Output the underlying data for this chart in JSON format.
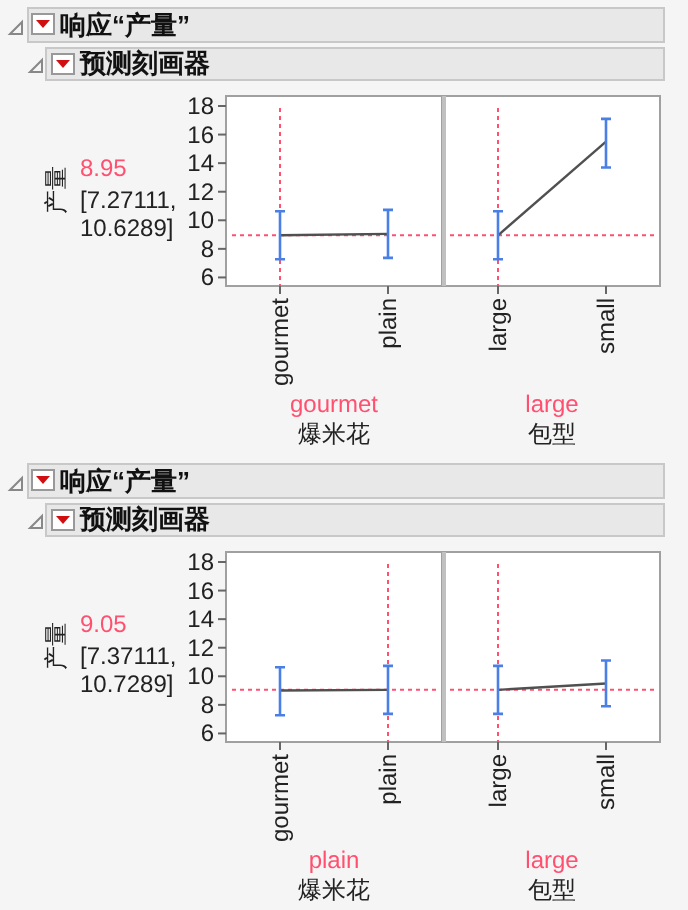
{
  "chart_data": [
    {
      "type": "line",
      "title": "响应“产量”",
      "subtitle": "预测刻画器",
      "ylabel": "产量",
      "xlabel": "爆米花",
      "categories": [
        "gourmet",
        "plain"
      ],
      "series": [
        {
          "color": "#505050",
          "values": [
            8.95,
            9.05
          ],
          "errors": [
            [
              7.27111,
              10.6289
            ],
            [
              7.37,
              10.73
            ]
          ]
        }
      ],
      "ylim": [
        5.4,
        18.7
      ],
      "yticks": [
        6,
        8,
        10,
        12,
        14,
        16,
        18
      ],
      "annotations": [
        "[7.27111, 10.6289]"
      ],
      "ref_lines": [
        {
          "axis": "y",
          "value": 8.95,
          "label": "8.95",
          "color": "#ff5070",
          "line_style": "dotted"
        },
        {
          "axis": "x",
          "value": "gourmet",
          "label": "gourmet",
          "color": "#ff5070",
          "line_style": "dotted"
        }
      ],
      "grid": false,
      "marker": "none"
    },
    {
      "type": "line",
      "xlabel": "包型",
      "categories": [
        "large",
        "small"
      ],
      "series": [
        {
          "color": "#505050",
          "values": [
            8.95,
            15.5
          ],
          "errors": [
            [
              7.27111,
              10.6289
            ],
            [
              13.7,
              17.1
            ]
          ]
        }
      ],
      "ylim": [
        5.4,
        18.7
      ],
      "yticks": [
        6,
        8,
        10,
        12,
        14,
        16,
        18
      ],
      "tick_labels": "x",
      "ref_lines": [
        {
          "axis": "y",
          "value": 8.95,
          "color": "#ff5070",
          "line_style": "dotted"
        },
        {
          "axis": "x",
          "value": "large",
          "label": "large",
          "color": "#ff5070",
          "line_style": "dotted"
        }
      ],
      "grid": false,
      "marker": "none"
    },
    {
      "type": "line",
      "title": "响应“产量”",
      "subtitle": "预测刻画器",
      "ylabel": "产量",
      "xlabel": "爆米花",
      "categories": [
        "gourmet",
        "plain"
      ],
      "series": [
        {
          "color": "#505050",
          "values": [
            9.0,
            9.05
          ],
          "errors": [
            [
              7.27,
              10.63
            ],
            [
              7.37111,
              10.7289
            ]
          ]
        }
      ],
      "ylim": [
        5.4,
        18.7
      ],
      "yticks": [
        6,
        8,
        10,
        12,
        14,
        16,
        18
      ],
      "annotations": [
        "[7.37111, 10.7289]"
      ],
      "ref_lines": [
        {
          "axis": "y",
          "value": 9.05,
          "label": "9.05",
          "color": "#ff5070",
          "line_style": "dotted"
        },
        {
          "axis": "x",
          "value": "plain",
          "label": "plain",
          "color": "#ff5070",
          "line_style": "dotted"
        }
      ],
      "grid": false,
      "marker": "none"
    },
    {
      "type": "line",
      "xlabel": "包型",
      "categories": [
        "large",
        "small"
      ],
      "series": [
        {
          "color": "#505050",
          "values": [
            9.05,
            9.5
          ],
          "errors": [
            [
              7.37111,
              10.7289
            ],
            [
              7.9,
              11.1
            ]
          ]
        }
      ],
      "ylim": [
        5.4,
        18.7
      ],
      "yticks": [
        6,
        8,
        10,
        12,
        14,
        16,
        18
      ],
      "tick_labels": "x",
      "ref_lines": [
        {
          "axis": "y",
          "value": 9.05,
          "color": "#ff5070",
          "line_style": "dotted"
        },
        {
          "axis": "x",
          "value": "large",
          "label": "large",
          "color": "#ff5070",
          "line_style": "dotted"
        }
      ],
      "grid": false,
      "marker": "none"
    }
  ]
}
